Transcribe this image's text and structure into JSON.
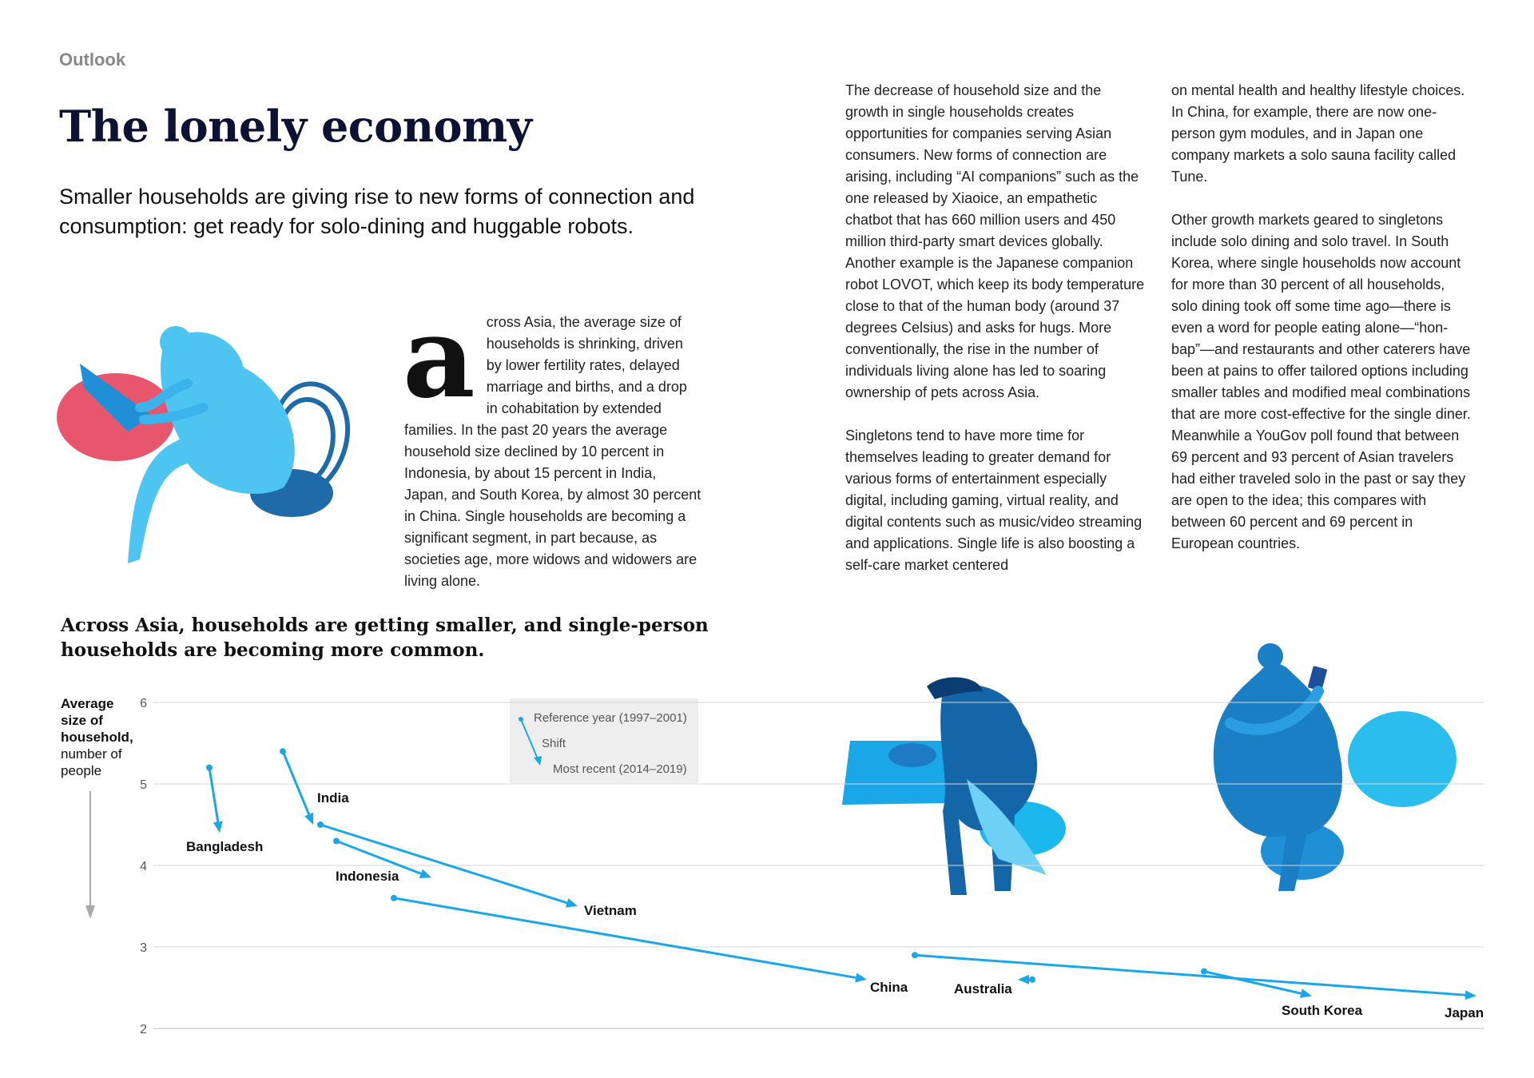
{
  "section_label": "Outlook",
  "title": "The lonely economy",
  "subtitle": "Smaller households are giving rise to new forms of connection and consumption: get ready for solo-dining and huggable robots.",
  "intro": {
    "dropcap": "a",
    "text": "cross Asia, the average size of households is shrinking, driven by lower fertility rates, delayed marriage and births, and a drop in cohabitation by extended families. In the past 20 years the average household size declined by 10 percent in Indonesia, by about 15 percent in India, Japan, and South Korea, by almost 30 percent in China. Single households are becoming a significant segment, in part because, as societies age, more widows and widowers are living alone."
  },
  "column2": {
    "p1": "The decrease of household size and the growth in single households creates opportunities for companies serving Asian consumers. New forms of connection are arising, including “AI companions” such as the one released by Xiaoice, an empathetic chatbot that has 660 million users and 450 million third-party smart devices globally. Another example is the Japanese companion robot LOVOT, which keep its body temperature close to that of the human body (around 37 degrees Celsius) and asks for hugs. More conventionally, the rise in the number of individuals living alone has led to soaring ownership of pets across Asia.",
    "p2": "Singletons tend to have more time for themselves leading to greater demand for various forms of entertainment especially digital, including gaming, virtual reality, and digital contents such as music/video streaming and applications. Single life is also boosting a self-care market centered"
  },
  "column3": {
    "p1": "on mental health and healthy lifestyle choices. In China, for example, there are now one-person gym modules, and in Japan one company markets a solo sauna facility called Tune.",
    "p2": "Other growth markets geared to singletons include solo dining and solo travel. In South Korea, where single households now account for more than 30 percent of all households, solo dining took off some time ago—there is even a word for people eating alone—“hon-bap”—and restaurants and other caterers have been at pains to offer tailored options including smaller tables and modified meal combinations that are more cost-effective for the single diner. Meanwhile a YouGov poll found that between 69 percent and 93 percent of Asian travelers had either traveled solo in the past or say they are open to the idea; this compares with between 60 percent and 69 percent in European countries."
  },
  "chart_data": {
    "type": "scatter",
    "title": "Across Asia, households are getting smaller, and single-person households are becoming more common.",
    "ylabel_bold": "Average size of household,",
    "ylabel_rest": "number of people",
    "ylim": [
      2,
      6
    ],
    "yticks": [
      "6",
      "5",
      "4",
      "3",
      "2"
    ],
    "y_axis_inverted_arrow": true,
    "grid": true,
    "legend": {
      "reference": "Reference year (1997–2001)",
      "shift": "Shift",
      "recent": "Most recent (2014–2019)"
    },
    "series": [
      {
        "name": "Bangladesh",
        "from": 5.2,
        "to": 4.4
      },
      {
        "name": "India",
        "from": 5.4,
        "to": 4.5
      },
      {
        "name": "Indonesia",
        "from": 4.3,
        "to": 3.85
      },
      {
        "name": "Vietnam",
        "from": 4.5,
        "to": 3.5
      },
      {
        "name": "China",
        "from": 3.6,
        "to": 2.6
      },
      {
        "name": "Australia",
        "from": 2.6,
        "to": 2.6
      },
      {
        "name": "South Korea",
        "from": 2.7,
        "to": 2.4
      },
      {
        "name": "Japan",
        "from": 2.9,
        "to": 2.4
      }
    ],
    "colors": {
      "arrow": "#1aa7e8",
      "grid": "#d6d6d6",
      "legend_bg": "#eeeeee"
    }
  },
  "illustrations": [
    "person-with-laptop-illustration",
    "person-eating-alone-illustration",
    "person-hugging-robot-illustration"
  ]
}
